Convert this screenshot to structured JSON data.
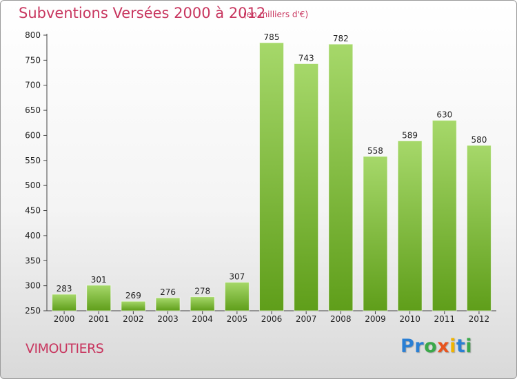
{
  "chart_data": {
    "type": "bar",
    "title": "Subventions Versées 2000 à 2012",
    "unit_label": "(en milliers d'€)",
    "xlabel": "",
    "ylabel": "",
    "categories": [
      "2000",
      "2001",
      "2002",
      "2003",
      "2004",
      "2005",
      "2006",
      "2007",
      "2008",
      "2009",
      "2010",
      "2011",
      "2012"
    ],
    "values": [
      283,
      301,
      269,
      276,
      278,
      307,
      785,
      743,
      782,
      558,
      589,
      630,
      580
    ],
    "value_labels": [
      "283",
      "301",
      "269",
      "276",
      "278",
      "307",
      "785",
      "743",
      "782",
      "558",
      "589",
      "630",
      "580"
    ],
    "ylim": [
      250,
      800
    ],
    "yticks": [
      250,
      300,
      350,
      400,
      450,
      500,
      550,
      600,
      650,
      700,
      750,
      800
    ],
    "grid": false,
    "legend": "none",
    "bar_color": "#7cc13a"
  },
  "commune": "VIMOUTIERS",
  "logo": {
    "letters": [
      "P",
      "r",
      "o",
      "x",
      "i",
      "t",
      "i"
    ],
    "colors": [
      "#2a7fd4",
      "#2a7fd4",
      "#3aa84a",
      "#e8541e",
      "#f0b400",
      "#2a7fd4",
      "#3aa84a"
    ]
  },
  "colors": {
    "accent": "#c8365f",
    "bar_top": "#a6d86a",
    "bar_bottom": "#5f9e1a"
  }
}
